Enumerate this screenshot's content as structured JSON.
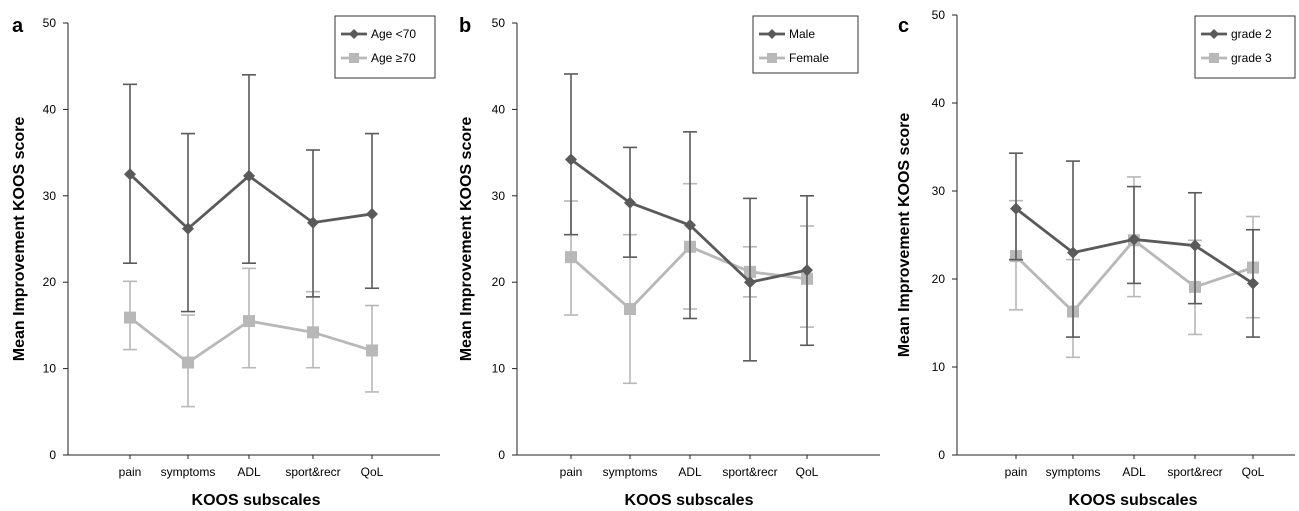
{
  "chart_data": [
    {
      "type": "line",
      "panel_label": "a",
      "categories": [
        "pain",
        "symptoms",
        "ADL",
        "sport&recr",
        "QoL"
      ],
      "xlabel": "KOOS subscales",
      "ylabel": "Mean Improvement KOOS score",
      "ylim": [
        0,
        50
      ],
      "yticks": [
        "0",
        "10",
        "20",
        "30",
        "40",
        "50"
      ],
      "error_bars": true,
      "legend_position": "top-right",
      "series": [
        {
          "name": "Age <70",
          "color": "#5a5a5a",
          "marker": "diamond",
          "values": [
            32.5,
            26.2,
            32.3,
            26.9,
            27.9
          ],
          "lower": [
            22.2,
            16.6,
            22.2,
            18.3,
            19.3
          ],
          "upper": [
            42.9,
            37.2,
            44.0,
            35.3,
            37.2
          ]
        },
        {
          "name": "Age ≥70",
          "color": "#b8b8b8",
          "marker": "square",
          "values": [
            15.9,
            10.7,
            15.5,
            14.2,
            12.1
          ],
          "lower": [
            12.2,
            5.6,
            10.1,
            10.1,
            7.3
          ],
          "upper": [
            20.1,
            16.2,
            21.6,
            18.9,
            17.3
          ]
        }
      ]
    },
    {
      "type": "line",
      "panel_label": "b",
      "categories": [
        "pain",
        "symptoms",
        "ADL",
        "sport&recr",
        "QoL"
      ],
      "xlabel": "KOOS subscales",
      "ylabel": "Mean Improvement KOOS score",
      "ylim": [
        0,
        50
      ],
      "yticks": [
        "0",
        "10",
        "20",
        "30",
        "40",
        "50"
      ],
      "error_bars": true,
      "legend_position": "top-right",
      "series": [
        {
          "name": "Male",
          "color": "#5a5a5a",
          "marker": "diamond",
          "values": [
            34.2,
            29.2,
            26.6,
            20.0,
            21.4
          ],
          "lower": [
            25.5,
            22.9,
            15.8,
            10.9,
            12.7
          ],
          "upper": [
            44.1,
            35.6,
            37.4,
            29.7,
            30.0
          ]
        },
        {
          "name": "Female",
          "color": "#b8b8b8",
          "marker": "square",
          "values": [
            22.9,
            16.9,
            24.1,
            21.2,
            20.4
          ],
          "lower": [
            16.2,
            8.3,
            16.9,
            18.3,
            14.8
          ],
          "upper": [
            29.4,
            25.5,
            31.4,
            24.1,
            26.5
          ]
        }
      ]
    },
    {
      "type": "line",
      "panel_label": "c",
      "categories": [
        "pain",
        "symptoms",
        "ADL",
        "sport&recr",
        "QoL"
      ],
      "xlabel": "KOOS subscales",
      "ylabel": "Mean Improvement KOOS score",
      "ylim": [
        0,
        50
      ],
      "yticks": [
        "0",
        "10",
        "20",
        "30",
        "40",
        "50"
      ],
      "error_bars": true,
      "legend_position": "top-right",
      "series": [
        {
          "name": "grade 2",
          "color": "#5a5a5a",
          "marker": "diamond",
          "values": [
            28.0,
            23.0,
            24.5,
            23.8,
            19.5
          ],
          "lower": [
            22.2,
            13.4,
            19.5,
            17.2,
            13.4
          ],
          "upper": [
            34.3,
            33.4,
            30.5,
            29.8,
            25.6
          ]
        },
        {
          "name": "grade 3",
          "color": "#b8b8b8",
          "marker": "square",
          "values": [
            22.6,
            16.3,
            24.4,
            19.1,
            21.3
          ],
          "lower": [
            16.5,
            11.1,
            18.0,
            13.7,
            15.6
          ],
          "upper": [
            28.9,
            22.2,
            31.6,
            24.4,
            27.1
          ]
        }
      ]
    }
  ]
}
